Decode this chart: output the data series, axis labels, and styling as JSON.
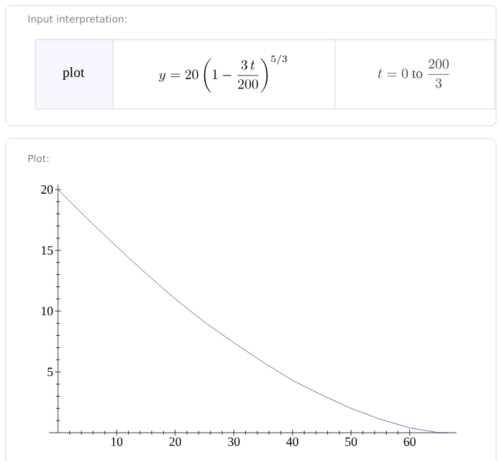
{
  "chart_data": {
    "type": "line",
    "annotations": [
      "Input interpretation:",
      "plot",
      "y = 20\\left(1-\\frac{3\\,t}{200}\\right)^{5/3}",
      "t = 0\\ \\mathrm{to}\\ \\frac{200}{3}",
      "Plot:"
    ],
    "x": [
      0,
      5,
      10,
      15,
      20,
      25,
      30,
      35,
      40,
      45,
      50,
      55,
      60,
      65,
      66.67
    ],
    "values": [
      20,
      17.6,
      15.3,
      13.1,
      11.0,
      9.1,
      7.4,
      5.8,
      4.3,
      3.1,
      2.0,
      1.1,
      0.4,
      0.0,
      0
    ],
    "color": "#4b4b8f",
    "xlim": [
      -1.5,
      68
    ],
    "ylim": [
      0,
      20.4
    ],
    "xticks": [
      {
        "value": 0,
        "label": null
      },
      10,
      20,
      30,
      40,
      50,
      60
    ],
    "yticks": [
      {
        "value": 0,
        "label": null
      },
      5,
      10,
      15,
      20
    ]
  }
}
